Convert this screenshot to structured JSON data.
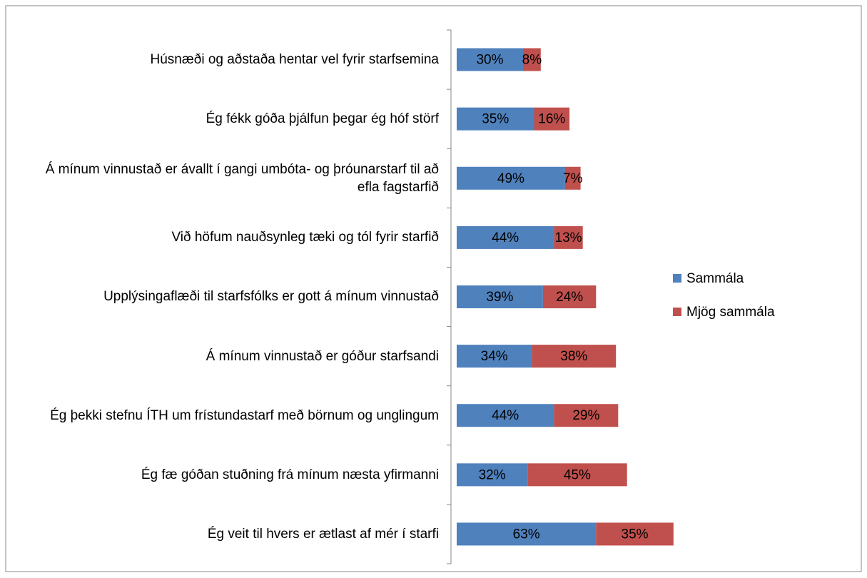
{
  "chart_data": {
    "type": "stacked-bar-horizontal",
    "categories": [
      "Húsnæði og aðstaða hentar vel fyrir starfsemina",
      "Ég fékk góða þjálfun þegar ég hóf störf",
      "Á mínum vinnustað er ávallt í gangi umbóta- og þróunarstarf til að efla fagstarfið",
      "Við höfum nauðsynleg tæki og tól fyrir starfið",
      "Upplýsingaflæði til starfsfólks er gott á mínum vinnustað",
      "Á mínum vinnustað er góður starfsandi",
      "Ég þekki stefnu ÍTH um frístundastarf með börnum og unglingum",
      "Ég fæ góðan stuðning frá mínum næsta yfirmanni",
      "Ég veit til hvers er ætlast af mér í starfi"
    ],
    "series": [
      {
        "name": "Sammála",
        "color": "#4f81bd",
        "values": [
          30,
          35,
          49,
          44,
          39,
          34,
          44,
          32,
          63
        ],
        "value_labels": [
          "30%",
          "35%",
          "49%",
          "44%",
          "39%",
          "34%",
          "44%",
          "32%",
          "63%"
        ]
      },
      {
        "name": "Mjög sammála",
        "color": "#c0504d",
        "values": [
          8,
          16,
          7,
          13,
          24,
          38,
          29,
          45,
          35
        ],
        "value_labels": [
          "8%",
          "16%",
          "7%",
          "13%",
          "24%",
          "38%",
          "29%",
          "45%",
          "35%"
        ]
      }
    ],
    "xlim": [
      0,
      100
    ],
    "legend": "right"
  }
}
